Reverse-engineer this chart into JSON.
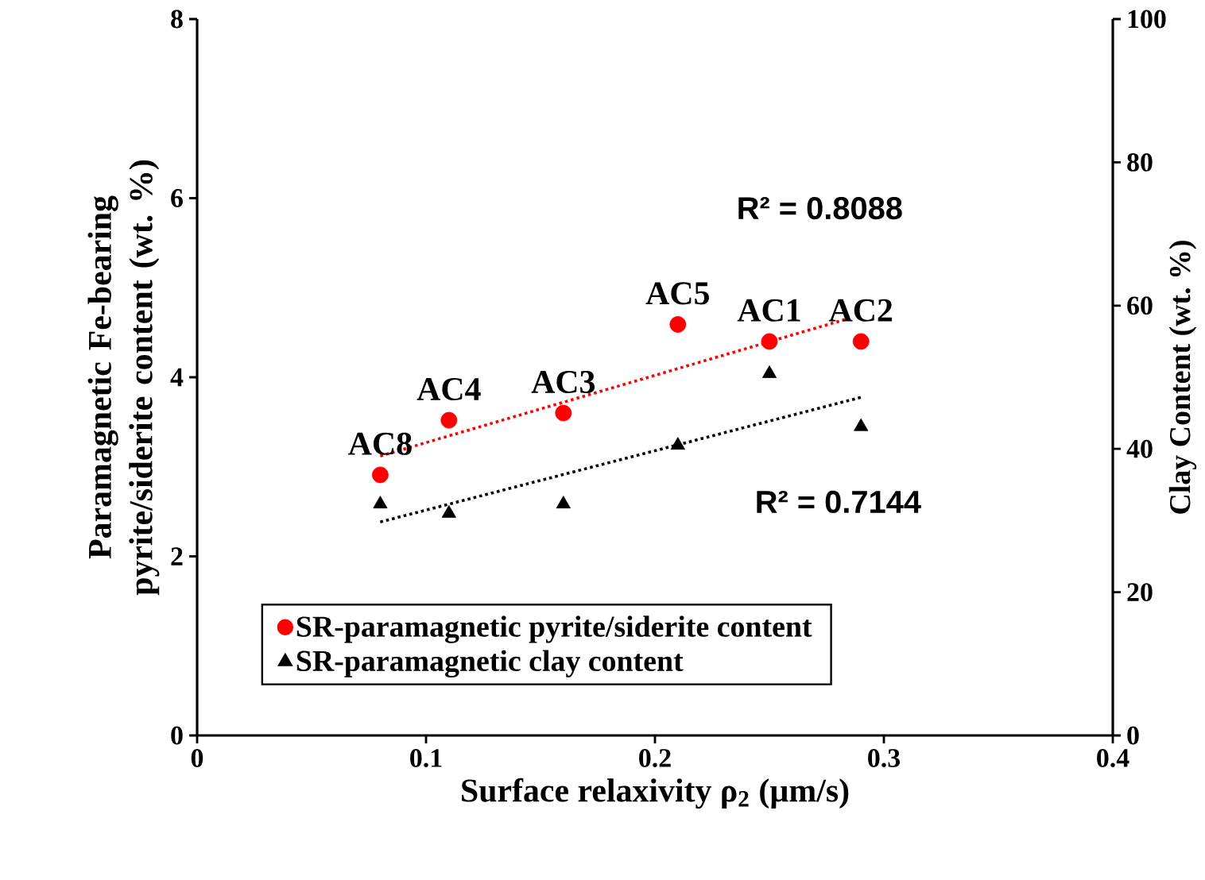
{
  "chart_data": {
    "type": "scatter",
    "xlabel": "Surface relaxivity  ρ$_{2}$ (µm/s)",
    "ylabel": "Paramagnetic Fe-bearing pyrite/siderite content (wt. %)",
    "y2label": "Clay Content (wt. %)",
    "xlim": [
      0,
      0.4
    ],
    "xticks": [
      0,
      0.1,
      0.2,
      0.3,
      0.4
    ],
    "ylim": [
      0,
      8
    ],
    "yticks": [
      0,
      2,
      4,
      6,
      8
    ],
    "y2lim": [
      0,
      100
    ],
    "y2ticks": [
      0,
      20,
      40,
      60,
      80,
      100
    ],
    "legend": "bottom",
    "x": [
      0.08,
      0.11,
      0.16,
      0.21,
      0.25,
      0.29
    ],
    "series": [
      {
        "name": "SR-paramagnetic pyrite/siderite content",
        "color": "#ff0000",
        "marker": "circle",
        "values": [
          2.91,
          3.52,
          3.6,
          4.59,
          4.4,
          4.4
        ]
      },
      {
        "name": "SR-paramagnetic clay content",
        "color": "#000000",
        "marker": "triangle",
        "axis": "y2",
        "values": [
          32.3,
          31,
          32.3,
          40.5,
          50.5,
          43.1
        ]
      },
      {
        "type": "line",
        "color": "#ff0000",
        "line_style": "dotted",
        "x": [
          0.08,
          0.285
        ],
        "values": [
          3.12,
          4.66
        ]
      },
      {
        "type": "line",
        "color": "#000000",
        "line_style": "dotted",
        "axis": "y2",
        "x": [
          0.08,
          0.29
        ],
        "values": [
          29.8,
          47.2
        ]
      }
    ],
    "annotations": [
      {
        "text": "AC8",
        "x": 0.08,
        "y": 2.91
      },
      {
        "text": "AC4",
        "x": 0.11,
        "y": 3.52
      },
      {
        "text": "AC3",
        "x": 0.16,
        "y": 3.6
      },
      {
        "text": "AC5",
        "x": 0.21,
        "y": 4.59
      },
      {
        "text": "AC1",
        "x": 0.25,
        "y": 4.4
      },
      {
        "text": "AC2",
        "x": 0.29,
        "y": 4.4
      },
      "R² = 0.8088",
      "R² = 0.7144"
    ]
  }
}
